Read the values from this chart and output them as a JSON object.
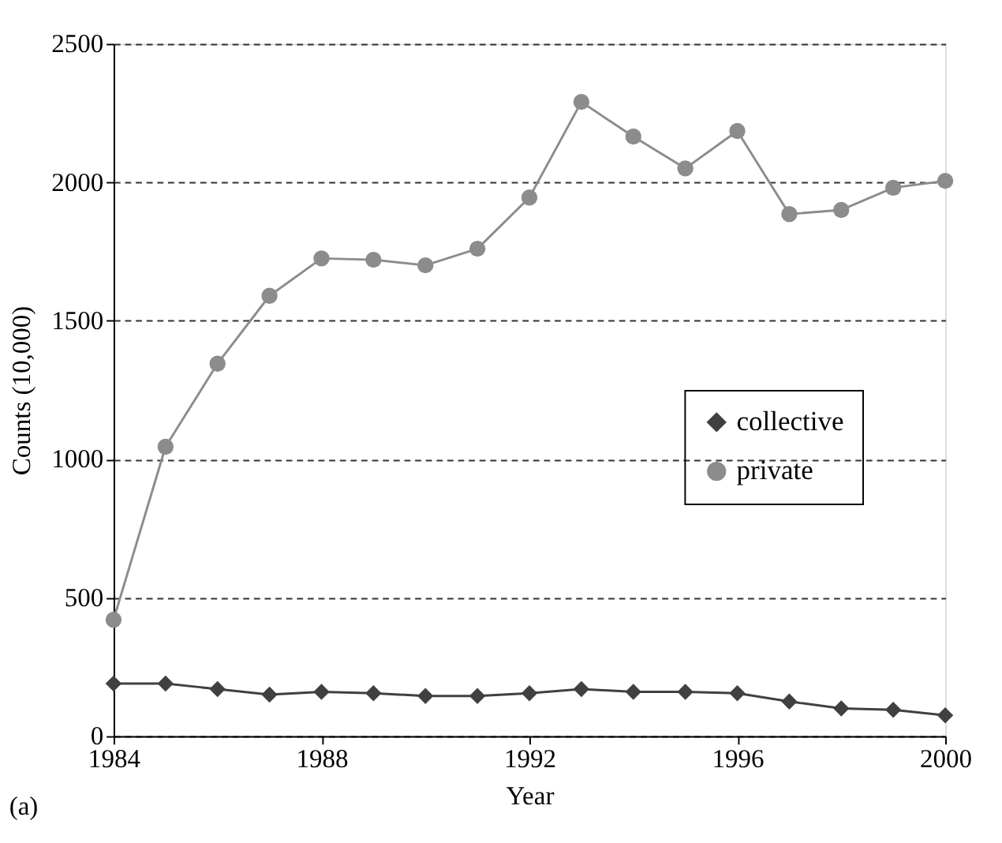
{
  "chart_data": {
    "type": "line",
    "xlabel": "Year",
    "ylabel": "Counts (10,000)",
    "annotations": [
      "(a)"
    ],
    "x": [
      1984,
      1985,
      1986,
      1987,
      1988,
      1989,
      1990,
      1991,
      1992,
      1993,
      1994,
      1995,
      1996,
      1997,
      1998,
      1999,
      2000
    ],
    "series": [
      {
        "name": "collective",
        "color": "#404040",
        "marker": "diamond",
        "values": [
          190,
          190,
          170,
          150,
          160,
          155,
          145,
          145,
          155,
          170,
          160,
          160,
          155,
          125,
          100,
          95,
          75
        ]
      },
      {
        "name": "private",
        "color": "#8c8c8c",
        "marker": "circle",
        "values": [
          420,
          1045,
          1345,
          1590,
          1725,
          1720,
          1700,
          1760,
          1945,
          2290,
          2165,
          2050,
          2185,
          1885,
          1900,
          1980,
          2005
        ]
      }
    ],
    "xlim": [
      1984,
      2000
    ],
    "xticks": [
      1984,
      1988,
      1992,
      1996,
      2000
    ],
    "ylim": [
      0,
      2500
    ],
    "yticks": [
      0,
      500,
      1000,
      1500,
      2000,
      2500
    ],
    "grid": "y",
    "line_style": "solid",
    "legend": "right"
  }
}
